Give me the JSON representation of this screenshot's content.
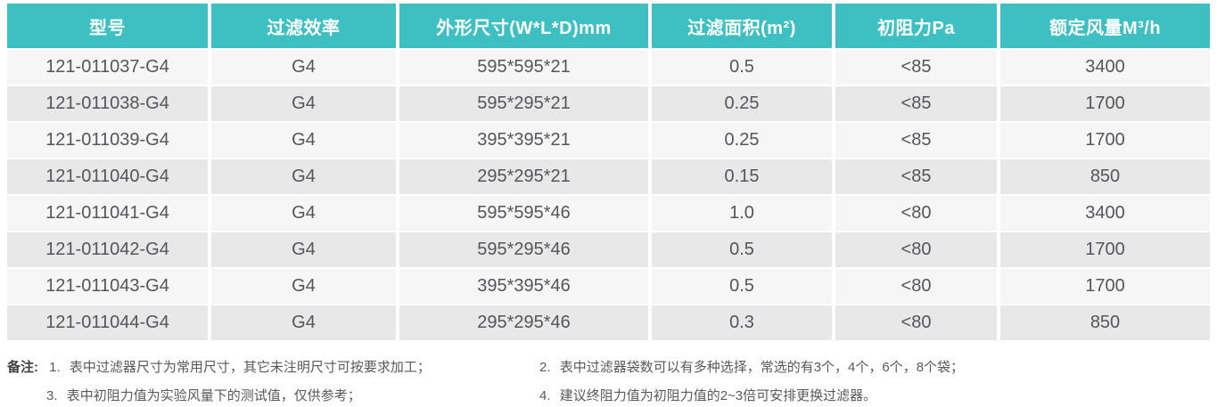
{
  "colors": {
    "header_bg": "#3ec0c2",
    "header_text": "#ffffff",
    "row_light": "#f6f6f7",
    "row_dark": "#e8e8e9",
    "cell_text": "#55555a",
    "note_text": "#595959",
    "note_label_text": "#404045"
  },
  "table": {
    "columns": [
      "型号",
      "过滤效率",
      "外形尺寸(W*L*D)mm",
      "过滤面积(m²)",
      "初阻力Pa",
      "额定风量M³/h"
    ],
    "rows": [
      [
        "121-011037-G4",
        "G4",
        "595*595*21",
        "0.5",
        "<85",
        "3400"
      ],
      [
        "121-011038-G4",
        "G4",
        "595*295*21",
        "0.25",
        "<85",
        "1700"
      ],
      [
        "121-011039-G4",
        "G4",
        "395*395*21",
        "0.25",
        "<85",
        "1700"
      ],
      [
        "121-011040-G4",
        "G4",
        "295*295*21",
        "0.15",
        "<85",
        "850"
      ],
      [
        "121-011041-G4",
        "G4",
        "595*595*46",
        "1.0",
        "<80",
        "3400"
      ],
      [
        "121-011042-G4",
        "G4",
        "595*295*46",
        "0.5",
        "<80",
        "1700"
      ],
      [
        "121-011043-G4",
        "G4",
        "395*395*46",
        "0.5",
        "<80",
        "1700"
      ],
      [
        "121-011044-G4",
        "G4",
        "295*295*46",
        "0.3",
        "<80",
        "850"
      ]
    ]
  },
  "notes": {
    "label": "备注:",
    "items": [
      {
        "num": "1.",
        "text": "表中过滤器尺寸为常用尺寸，其它未注明尺寸可按要求加工；"
      },
      {
        "num": "2.",
        "text": "表中过滤器袋数可以有多种选择，常选的有3个，4个，6个，8个袋；"
      },
      {
        "num": "3.",
        "text": "表中初阻力值为实验风量下的测试值，仅供参考；"
      },
      {
        "num": "4.",
        "text": "建议终阻力值为初阻力值的2~3倍可安排更换过滤器。"
      }
    ]
  }
}
